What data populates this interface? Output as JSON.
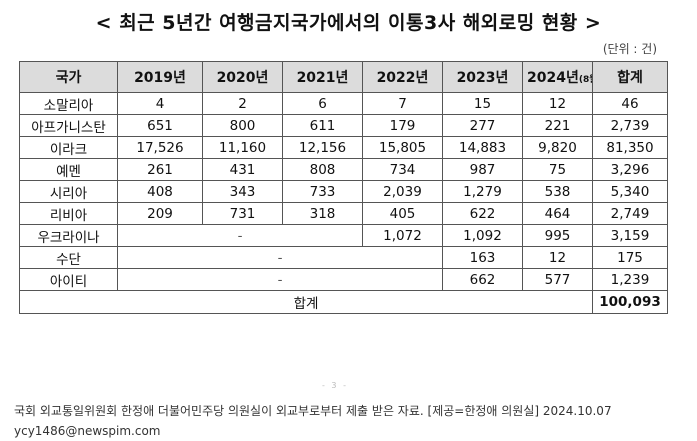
{
  "title": "< 최근 5년간 여행금지국가에서의 이통3사 해외로밍 현황 >",
  "unit": "(단위 : 건)",
  "table": {
    "headers": {
      "country": "국가",
      "y2019": "2019년",
      "y2020": "2020년",
      "y2021": "2021년",
      "y2022": "2022년",
      "y2023": "2023년",
      "y2024_year": "2024년",
      "y2024_month": "(8월)",
      "total": "합계"
    },
    "rows": [
      {
        "country": "소말리아",
        "y2019": "4",
        "y2020": "2",
        "y2021": "6",
        "y2022": "7",
        "y2023": "15",
        "y2024": "12",
        "total": "46"
      },
      {
        "country": "아프가니스탄",
        "y2019": "651",
        "y2020": "800",
        "y2021": "611",
        "y2022": "179",
        "y2023": "277",
        "y2024": "221",
        "total": "2,739"
      },
      {
        "country": "이라크",
        "y2019": "17,526",
        "y2020": "11,160",
        "y2021": "12,156",
        "y2022": "15,805",
        "y2023": "14,883",
        "y2024": "9,820",
        "total": "81,350"
      },
      {
        "country": "예멘",
        "y2019": "261",
        "y2020": "431",
        "y2021": "808",
        "y2022": "734",
        "y2023": "987",
        "y2024": "75",
        "total": "3,296"
      },
      {
        "country": "시리아",
        "y2019": "408",
        "y2020": "343",
        "y2021": "733",
        "y2022": "2,039",
        "y2023": "1,279",
        "y2024": "538",
        "total": "5,340"
      },
      {
        "country": "리비아",
        "y2019": "209",
        "y2020": "731",
        "y2021": "318",
        "y2022": "405",
        "y2023": "622",
        "y2024": "464",
        "total": "2,749"
      },
      {
        "country": "우크라이나",
        "dash": "-",
        "y2022": "1,072",
        "y2023": "1,092",
        "y2024": "995",
        "total": "3,159"
      },
      {
        "country": "수단",
        "dash": "-",
        "y2023": "163",
        "y2024": "12",
        "total": "175"
      },
      {
        "country": "아이티",
        "dash": "-",
        "y2023": "662",
        "y2024": "577",
        "total": "1,239"
      }
    ],
    "grand_total_label": "합계",
    "grand_total_value": "100,093"
  },
  "fragment": "- 3 -",
  "caption": {
    "line1": "국회 외교통일위원회 한정애 더불어민주당 의원실이 외교부로부터 제출 받은 자료. [제공=한정애 의원실] 2024.10.07",
    "line2": "ycy1486@newspim.com"
  }
}
